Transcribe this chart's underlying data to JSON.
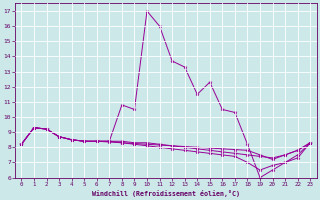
{
  "xlabel": "Windchill (Refroidissement éolien,°C)",
  "ylabel": "",
  "background_color": "#cce8e8",
  "line_color": "#990099",
  "grid_color": "#ffffff",
  "xlim": [
    -0.5,
    23.5
  ],
  "ylim": [
    6,
    17.5
  ],
  "xticks": [
    0,
    1,
    2,
    3,
    4,
    5,
    6,
    7,
    8,
    9,
    10,
    11,
    12,
    13,
    14,
    15,
    16,
    17,
    18,
    19,
    20,
    21,
    22,
    23
  ],
  "yticks": [
    6,
    7,
    8,
    9,
    10,
    11,
    12,
    13,
    14,
    15,
    16,
    17
  ],
  "series": [
    [
      8.2,
      9.3,
      9.2,
      8.7,
      8.5,
      8.4,
      8.4,
      8.4,
      10.8,
      10.5,
      17.0,
      16.0,
      13.7,
      13.3,
      11.5,
      12.3,
      10.5,
      10.3,
      8.2,
      6.0,
      6.5,
      7.0,
      7.5,
      8.3
    ],
    [
      8.2,
      9.3,
      9.2,
      8.7,
      8.5,
      8.4,
      8.4,
      8.4,
      8.4,
      8.3,
      8.3,
      8.2,
      8.1,
      8.0,
      7.9,
      7.8,
      7.7,
      7.6,
      7.5,
      7.4,
      7.3,
      7.5,
      7.8,
      8.3
    ],
    [
      8.2,
      9.3,
      9.2,
      8.7,
      8.5,
      8.4,
      8.4,
      8.4,
      8.3,
      8.2,
      8.1,
      8.0,
      7.9,
      7.8,
      7.7,
      7.6,
      7.5,
      7.4,
      7.0,
      6.5,
      6.8,
      7.0,
      7.3,
      8.3
    ],
    [
      8.2,
      9.3,
      9.2,
      8.7,
      8.5,
      8.4,
      8.4,
      8.35,
      8.3,
      8.25,
      8.2,
      8.15,
      8.1,
      8.05,
      8.0,
      7.95,
      7.9,
      7.85,
      7.8,
      7.5,
      7.2,
      7.5,
      7.8,
      8.3
    ]
  ]
}
